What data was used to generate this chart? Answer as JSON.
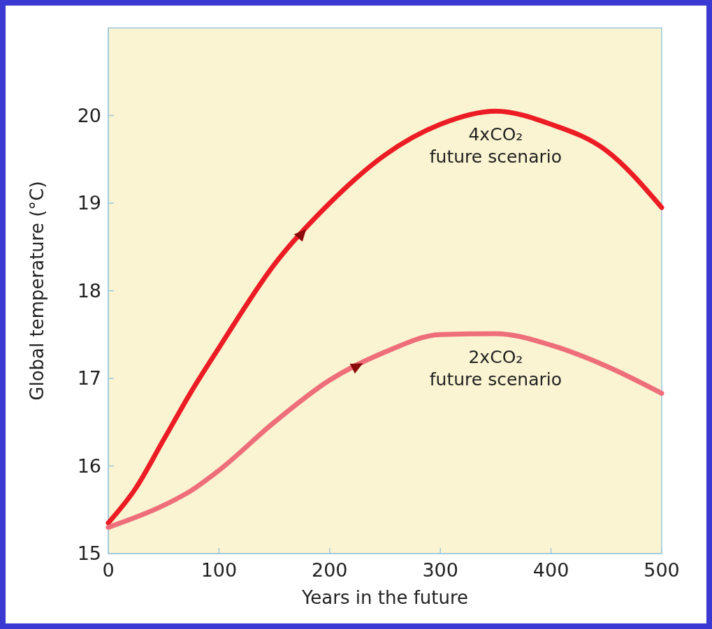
{
  "chart_data": {
    "type": "line",
    "xlabel": "Years in the future",
    "ylabel": "Global temperature (°C)",
    "xlim": [
      0,
      500
    ],
    "ylim": [
      15,
      21
    ],
    "xticks": [
      0,
      100,
      200,
      300,
      400,
      500
    ],
    "yticks": [
      15,
      16,
      17,
      18,
      19,
      20
    ],
    "grid": false,
    "marker": "none",
    "line_style": "solid",
    "series": [
      {
        "name": "4xCO₂ future scenario",
        "color": "#ec1c24",
        "x": [
          0,
          25,
          50,
          75,
          100,
          150,
          200,
          250,
          300,
          350,
          400,
          450,
          500
        ],
        "values": [
          15.35,
          15.75,
          16.3,
          16.85,
          17.35,
          18.3,
          19.0,
          19.55,
          19.9,
          20.05,
          19.9,
          19.6,
          18.95
        ]
      },
      {
        "name": "2xCO₂ future scenario",
        "color": "#ee6e7a",
        "x": [
          0,
          50,
          75,
          100,
          150,
          200,
          250,
          300,
          350,
          400,
          450,
          500
        ],
        "values": [
          15.3,
          15.55,
          15.72,
          15.95,
          16.5,
          16.98,
          17.3,
          17.5,
          17.51,
          17.38,
          17.14,
          16.83
        ]
      }
    ]
  }
}
